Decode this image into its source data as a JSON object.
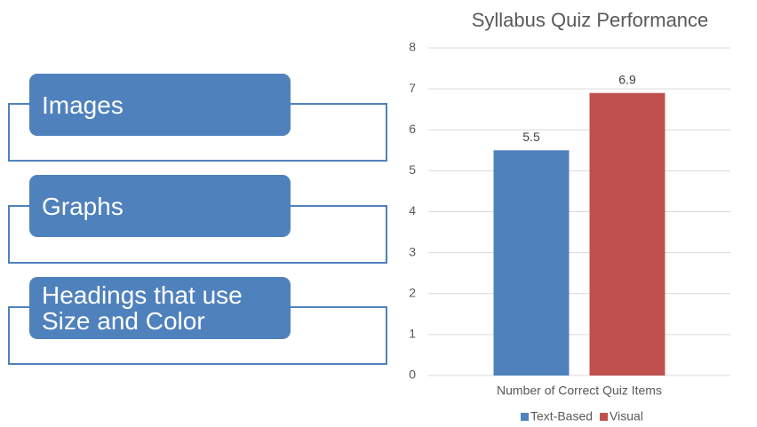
{
  "items": [
    "Images",
    "Graphs",
    "Headings that use Size and Color"
  ],
  "chart_data": {
    "type": "bar",
    "title": "Syllabus Quiz Performance",
    "categories": [
      "Number of Correct Quiz Items"
    ],
    "series": [
      {
        "name": "Text-Based",
        "color": "#4f81bd",
        "values": [
          5.5
        ]
      },
      {
        "name": "Visual",
        "color": "#c0504d",
        "values": [
          6.9
        ]
      }
    ],
    "ylim": [
      0,
      8
    ],
    "yticks": [
      0,
      1,
      2,
      3,
      4,
      5,
      6,
      7,
      8
    ],
    "grid": true,
    "legend": "bottom"
  }
}
